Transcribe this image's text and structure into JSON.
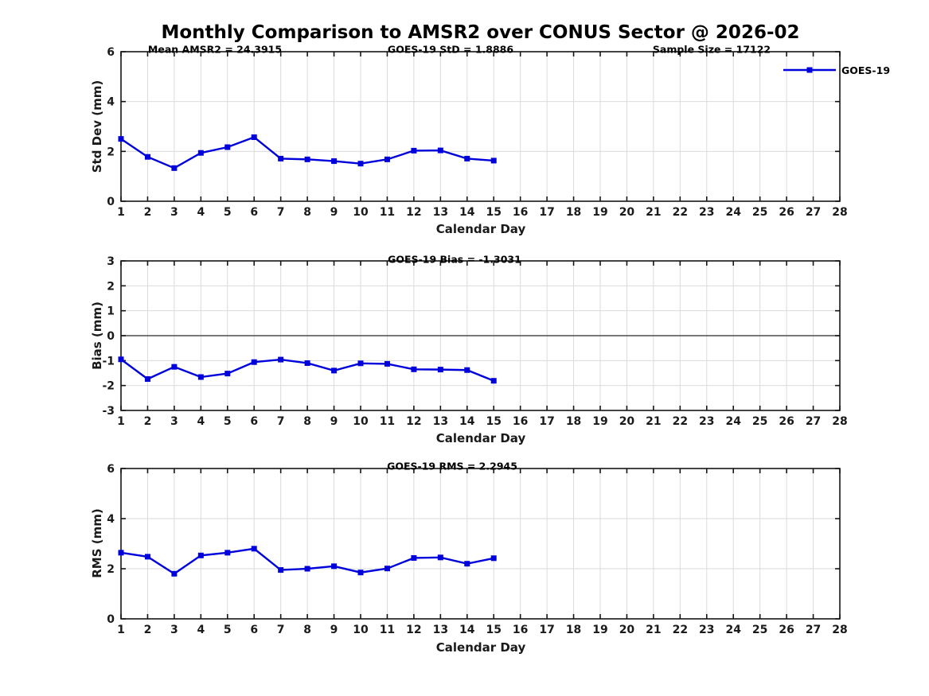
{
  "title": "Monthly Comparison to AMSR2 over CONUS Sector @ 2026-02",
  "xlabel": "Calendar Day",
  "legend": {
    "label": "GOES-19",
    "position": "top-right-outside-plot"
  },
  "colors": {
    "series": "#0000DC",
    "grid": "#DBDBDB",
    "axis": "#151515",
    "zero_line": "#4D4D4D",
    "tick_text": "#1A1A1A",
    "text": "#000000"
  },
  "chart_data": [
    {
      "type": "line",
      "name": "std-dev",
      "ylabel": "Std Dev (mm)",
      "xlabel": "Calendar Day",
      "ylim": [
        0,
        6
      ],
      "yticks": [
        0,
        2,
        4,
        6
      ],
      "xlim": [
        1,
        28
      ],
      "xticks": [
        1,
        2,
        3,
        4,
        5,
        6,
        7,
        8,
        9,
        10,
        11,
        12,
        13,
        14,
        15,
        16,
        17,
        18,
        19,
        20,
        21,
        22,
        23,
        24,
        25,
        26,
        27,
        28
      ],
      "grid": true,
      "annotations": [
        "Mean AMSR2 = 24.3915",
        "GOES-19 StD = 1.8886",
        "Sample Size = 17122"
      ],
      "series": [
        {
          "name": "GOES-19",
          "marker": "square",
          "x": [
            1,
            2,
            3,
            4,
            5,
            6,
            7,
            8,
            9,
            10,
            11,
            12,
            13,
            14,
            15
          ],
          "values": [
            2.5,
            1.78,
            1.33,
            1.94,
            2.17,
            2.57,
            1.71,
            1.68,
            1.61,
            1.51,
            1.68,
            2.03,
            2.04,
            1.71,
            1.63
          ]
        }
      ]
    },
    {
      "type": "line",
      "name": "bias",
      "ylabel": "Bias (mm)",
      "xlabel": "Calendar Day",
      "ylim": [
        -3,
        3
      ],
      "yticks": [
        -3,
        -2,
        -1,
        0,
        1,
        2,
        3
      ],
      "xlim": [
        1,
        28
      ],
      "xticks": [
        1,
        2,
        3,
        4,
        5,
        6,
        7,
        8,
        9,
        10,
        11,
        12,
        13,
        14,
        15,
        16,
        17,
        18,
        19,
        20,
        21,
        22,
        23,
        24,
        25,
        26,
        27,
        28
      ],
      "grid": true,
      "zero_line": true,
      "annotations": [
        "GOES-19 Bias = -1.3031"
      ],
      "series": [
        {
          "name": "GOES-19",
          "marker": "square",
          "x": [
            1,
            2,
            3,
            4,
            5,
            6,
            7,
            8,
            9,
            10,
            11,
            12,
            13,
            14,
            15
          ],
          "values": [
            -0.95,
            -1.74,
            -1.25,
            -1.66,
            -1.52,
            -1.06,
            -0.96,
            -1.1,
            -1.4,
            -1.11,
            -1.13,
            -1.35,
            -1.36,
            -1.38,
            -1.81
          ]
        }
      ]
    },
    {
      "type": "line",
      "name": "rms",
      "ylabel": "RMS (mm)",
      "xlabel": "Calendar Day",
      "ylim": [
        0,
        6
      ],
      "yticks": [
        0,
        2,
        4,
        6
      ],
      "xlim": [
        1,
        28
      ],
      "xticks": [
        1,
        2,
        3,
        4,
        5,
        6,
        7,
        8,
        9,
        10,
        11,
        12,
        13,
        14,
        15,
        16,
        17,
        18,
        19,
        20,
        21,
        22,
        23,
        24,
        25,
        26,
        27,
        28
      ],
      "grid": true,
      "annotations": [
        "GOES-19 RMS = 2.2945"
      ],
      "series": [
        {
          "name": "GOES-19",
          "marker": "square",
          "x": [
            1,
            2,
            3,
            4,
            5,
            6,
            7,
            8,
            9,
            10,
            11,
            12,
            13,
            14,
            15
          ],
          "values": [
            2.64,
            2.48,
            1.8,
            2.53,
            2.64,
            2.8,
            1.95,
            2.0,
            2.1,
            1.85,
            2.01,
            2.43,
            2.45,
            2.2,
            2.42
          ]
        }
      ]
    }
  ]
}
